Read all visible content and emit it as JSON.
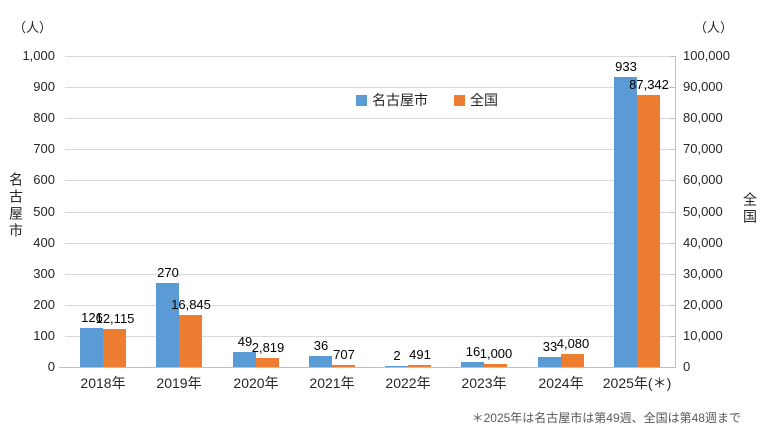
{
  "chart_data": {
    "type": "bar",
    "title": "",
    "categories": [
      "2018年",
      "2019年",
      "2020年",
      "2021年",
      "2022年",
      "2023年",
      "2024年",
      "2025年(＊)"
    ],
    "series": [
      {
        "name": "名古屋市",
        "axis": "left",
        "color": "#5B9BD5",
        "values": [
          126,
          270,
          49,
          36,
          2,
          16,
          33,
          933
        ],
        "value_labels": [
          "126",
          "270",
          "49",
          "36",
          "2",
          "16",
          "33",
          "933"
        ]
      },
      {
        "name": "全国",
        "axis": "right",
        "color": "#ED7D31",
        "values": [
          12115,
          16845,
          2819,
          707,
          491,
          1000,
          4080,
          87342
        ],
        "value_labels": [
          "12,115",
          "16,845",
          "2,819",
          "707",
          "491",
          "1,000",
          "4,080",
          "87,342"
        ]
      }
    ],
    "left_axis": {
      "unit": "（人）",
      "title": "名古屋市",
      "min": 0,
      "max": 1000,
      "step": 100,
      "tick_labels": [
        "0",
        "100",
        "200",
        "300",
        "400",
        "500",
        "600",
        "700",
        "800",
        "900",
        "1,000"
      ]
    },
    "right_axis": {
      "unit": "（人）",
      "title": "全国",
      "min": 0,
      "max": 100000,
      "step": 10000,
      "tick_labels": [
        "0",
        "10,000",
        "20,000",
        "30,000",
        "40,000",
        "50,000",
        "60,000",
        "70,000",
        "80,000",
        "90,000",
        "100,000"
      ]
    },
    "legend": {
      "position": "top-inside",
      "items": [
        {
          "label": "名古屋市",
          "color": "#5B9BD5"
        },
        {
          "label": "全国",
          "color": "#ED7D31"
        }
      ]
    },
    "grid": true,
    "gridline_color": "#D9D9D9",
    "background": "#FFFFFF",
    "footnote": "＊2025年は名古屋市は第49週、全国は第48週まで"
  }
}
